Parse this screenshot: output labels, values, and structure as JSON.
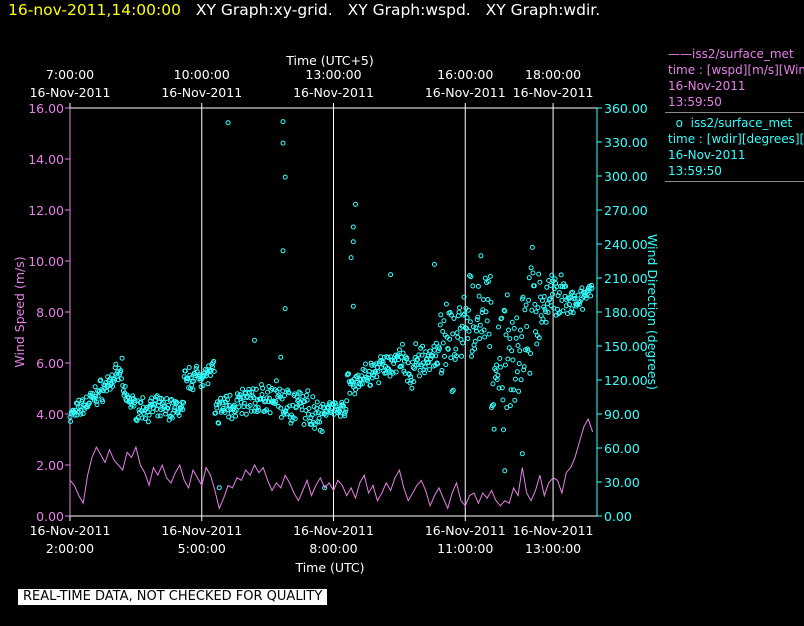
{
  "header": {
    "timestamp": "16-nov-2011,14:00:00",
    "graphs": [
      "XY Graph:xy-grid.",
      "XY Graph:wspd.",
      "XY Graph:wdir."
    ]
  },
  "legend": [
    {
      "marker": "line",
      "name": "iss2/surface_met",
      "lines": [
        "time : [wspd][m/s][Wind",
        "16-Nov-2011",
        "13:59:50"
      ]
    },
    {
      "marker": "circle",
      "name": "iss2/surface_met",
      "lines": [
        "time : [wdir][degrees][W",
        "16-Nov-2011",
        "13:59:50"
      ]
    }
  ],
  "banner": "REAL-TIME DATA, NOT CHECKED FOR QUALITY",
  "colors": {
    "wspd": "#e680e6",
    "wdir": "#33ffff",
    "axes": "#ffffff",
    "title": "#ffff00",
    "background": "#000000"
  },
  "chart_data": {
    "type": "scatter",
    "grid": "vertical lines only",
    "top_axis": {
      "label": "Time (UTC+5)",
      "ticks": [
        {
          "time": "7:00:00",
          "date": "16-Nov-2011",
          "x": 2.0
        },
        {
          "time": "10:00:00",
          "date": "16-Nov-2011",
          "x": 5.0
        },
        {
          "time": "13:00:00",
          "date": "16-Nov-2011",
          "x": 8.0
        },
        {
          "time": "16:00:00",
          "date": "16-Nov-2011",
          "x": 11.0
        },
        {
          "time": "18:00:00",
          "date": "16-Nov-2011",
          "x": 13.0
        }
      ]
    },
    "bottom_axis": {
      "label": "Time (UTC)",
      "xlim": [
        2.0,
        14.0
      ],
      "ticks": [
        {
          "date": "16-Nov-2011",
          "time": "2:00:00",
          "x": 2.0
        },
        {
          "date": "16-Nov-2011",
          "time": "5:00:00",
          "x": 5.0
        },
        {
          "date": "16-Nov-2011",
          "time": "8:00:00",
          "x": 8.0
        },
        {
          "date": "16-Nov-2011",
          "time": "11:00:00",
          "x": 11.0
        },
        {
          "date": "16-Nov-2011",
          "time": "13:00:00",
          "x": 13.0
        }
      ]
    },
    "left_axis": {
      "label": "Wind Speed (m/s)",
      "ylim": [
        0,
        16
      ],
      "ticks": [
        "0.00",
        "2.00",
        "4.00",
        "6.00",
        "8.00",
        "10.00",
        "12.00",
        "14.00",
        "16.00"
      ]
    },
    "right_axis": {
      "label": "Wind Direction (degrees)",
      "ylim": [
        0,
        360
      ],
      "ticks": [
        "0.00",
        "30.00",
        "60.00",
        "90.00",
        "120.00",
        "150.00",
        "180.00",
        "210.00",
        "240.00",
        "270.00",
        "300.00",
        "330.00",
        "360.00"
      ]
    },
    "series": [
      {
        "name": "iss2/surface_met",
        "variable": "wspd",
        "style": "line",
        "axis": "left",
        "x_unit": "UTC hour",
        "points": [
          [
            2.0,
            1.4
          ],
          [
            2.1,
            1.2
          ],
          [
            2.2,
            0.8
          ],
          [
            2.3,
            0.5
          ],
          [
            2.4,
            1.6
          ],
          [
            2.5,
            2.3
          ],
          [
            2.6,
            2.7
          ],
          [
            2.7,
            2.4
          ],
          [
            2.8,
            2.1
          ],
          [
            2.9,
            2.6
          ],
          [
            3.0,
            2.2
          ],
          [
            3.1,
            2.0
          ],
          [
            3.2,
            1.8
          ],
          [
            3.3,
            2.5
          ],
          [
            3.4,
            2.3
          ],
          [
            3.5,
            2.7
          ],
          [
            3.6,
            2.0
          ],
          [
            3.7,
            1.7
          ],
          [
            3.8,
            1.2
          ],
          [
            3.9,
            1.9
          ],
          [
            4.0,
            1.6
          ],
          [
            4.1,
            2.0
          ],
          [
            4.2,
            1.5
          ],
          [
            4.3,
            1.3
          ],
          [
            4.4,
            1.7
          ],
          [
            4.5,
            2.0
          ],
          [
            4.6,
            1.4
          ],
          [
            4.7,
            1.1
          ],
          [
            4.8,
            1.8
          ],
          [
            4.9,
            1.5
          ],
          [
            5.0,
            1.2
          ],
          [
            5.1,
            1.9
          ],
          [
            5.2,
            1.6
          ],
          [
            5.3,
            1.0
          ],
          [
            5.4,
            0.3
          ],
          [
            5.5,
            0.7
          ],
          [
            5.6,
            1.2
          ],
          [
            5.7,
            1.1
          ],
          [
            5.8,
            1.5
          ],
          [
            5.9,
            1.4
          ],
          [
            6.0,
            1.8
          ],
          [
            6.1,
            1.6
          ],
          [
            6.2,
            2.0
          ],
          [
            6.3,
            1.7
          ],
          [
            6.4,
            1.9
          ],
          [
            6.5,
            1.4
          ],
          [
            6.6,
            1.0
          ],
          [
            6.7,
            1.3
          ],
          [
            6.8,
            1.1
          ],
          [
            6.9,
            1.6
          ],
          [
            7.0,
            1.3
          ],
          [
            7.1,
            0.9
          ],
          [
            7.2,
            0.6
          ],
          [
            7.3,
            1.0
          ],
          [
            7.4,
            1.4
          ],
          [
            7.5,
            0.8
          ],
          [
            7.6,
            1.2
          ],
          [
            7.7,
            1.5
          ],
          [
            7.8,
            1.1
          ],
          [
            7.9,
            1.3
          ],
          [
            8.0,
            1.0
          ],
          [
            8.1,
            1.4
          ],
          [
            8.2,
            1.2
          ],
          [
            8.3,
            0.8
          ],
          [
            8.4,
            1.1
          ],
          [
            8.5,
            0.7
          ],
          [
            8.6,
            1.3
          ],
          [
            8.7,
            1.6
          ],
          [
            8.8,
            0.9
          ],
          [
            8.9,
            1.2
          ],
          [
            9.0,
            0.6
          ],
          [
            9.1,
            0.9
          ],
          [
            9.2,
            1.3
          ],
          [
            9.3,
            1.0
          ],
          [
            9.4,
            1.5
          ],
          [
            9.5,
            1.8
          ],
          [
            9.6,
            1.1
          ],
          [
            9.7,
            0.6
          ],
          [
            9.8,
            0.9
          ],
          [
            9.9,
            1.2
          ],
          [
            10.0,
            1.4
          ],
          [
            10.1,
            1.0
          ],
          [
            10.2,
            0.4
          ],
          [
            10.3,
            0.8
          ],
          [
            10.4,
            1.1
          ],
          [
            10.5,
            0.7
          ],
          [
            10.6,
            0.3
          ],
          [
            10.7,
            0.9
          ],
          [
            10.8,
            1.3
          ],
          [
            10.9,
            0.6
          ],
          [
            11.0,
            0.4
          ],
          [
            11.1,
            0.8
          ],
          [
            11.2,
            0.9
          ],
          [
            11.3,
            0.5
          ],
          [
            11.4,
            0.9
          ],
          [
            11.5,
            0.7
          ],
          [
            11.6,
            1.0
          ],
          [
            11.7,
            0.6
          ],
          [
            11.8,
            0.4
          ],
          [
            11.9,
            0.6
          ],
          [
            12.0,
            0.5
          ],
          [
            12.1,
            1.1
          ],
          [
            12.2,
            0.8
          ],
          [
            12.3,
            1.9
          ],
          [
            12.4,
            0.9
          ],
          [
            12.5,
            0.6
          ],
          [
            12.6,
            1.0
          ],
          [
            12.7,
            1.6
          ],
          [
            12.8,
            0.8
          ],
          [
            12.9,
            1.3
          ],
          [
            13.0,
            1.5
          ],
          [
            13.1,
            1.4
          ],
          [
            13.2,
            0.9
          ],
          [
            13.3,
            1.7
          ],
          [
            13.4,
            1.9
          ],
          [
            13.5,
            2.3
          ],
          [
            13.6,
            2.9
          ],
          [
            13.7,
            3.5
          ],
          [
            13.8,
            3.8
          ],
          [
            13.9,
            3.3
          ]
        ]
      },
      {
        "name": "iss2/surface_met",
        "variable": "wdir",
        "style": "circle-markers",
        "axis": "right",
        "x_unit": "UTC hour",
        "bands": [
          {
            "x": [
              2.0,
              2.4
            ],
            "center": [
              88,
              100
            ],
            "spread": 10
          },
          {
            "x": [
              2.4,
              3.2
            ],
            "center": [
              100,
              128
            ],
            "spread": 12
          },
          {
            "x": [
              3.2,
              3.5
            ],
            "center": [
              110,
              95
            ],
            "spread": 10
          },
          {
            "x": [
              3.5,
              4.6
            ],
            "center": [
              95,
              95
            ],
            "spread": 12
          },
          {
            "x": [
              4.6,
              5.3
            ],
            "center": [
              120,
              128
            ],
            "spread": 12
          },
          {
            "x": [
              5.3,
              5.6
            ],
            "center": [
              90,
              100
            ],
            "spread": 14
          },
          {
            "x": [
              5.6,
              6.8
            ],
            "center": [
              98,
              105
            ],
            "spread": 16
          },
          {
            "x": [
              6.8,
              7.8
            ],
            "center": [
              100,
              90
            ],
            "spread": 20
          },
          {
            "x": [
              7.8,
              8.3
            ],
            "center": [
              95,
              95
            ],
            "spread": 8
          },
          {
            "x": [
              8.3,
              9.6
            ],
            "center": [
              115,
              140
            ],
            "spread": 14
          },
          {
            "x": [
              9.6,
              10.4
            ],
            "center": [
              125,
              145
            ],
            "spread": 22
          },
          {
            "x": [
              10.4,
              11.6
            ],
            "center": [
              140,
              190
            ],
            "spread": 50
          },
          {
            "x": [
              11.6,
              12.7
            ],
            "center": [
              110,
              195
            ],
            "spread": 60
          },
          {
            "x": [
              12.7,
              13.3
            ],
            "center": [
              185,
              200
            ],
            "spread": 25
          },
          {
            "x": [
              13.3,
              13.7
            ],
            "center": [
              185,
              190
            ],
            "spread": 15
          },
          {
            "x": [
              13.7,
              13.9
            ],
            "center": [
              195,
              200
            ],
            "spread": 6
          }
        ],
        "outliers": [
          [
            5.6,
            347
          ],
          [
            6.85,
            348
          ],
          [
            6.85,
            329
          ],
          [
            6.9,
            299
          ],
          [
            6.85,
            234
          ],
          [
            6.9,
            183
          ],
          [
            8.5,
            275
          ],
          [
            8.45,
            255
          ],
          [
            8.45,
            242
          ],
          [
            8.4,
            228
          ],
          [
            8.45,
            185
          ],
          [
            9.3,
            213
          ],
          [
            10.3,
            222
          ],
          [
            6.2,
            155
          ],
          [
            6.8,
            140
          ],
          [
            12.3,
            55
          ],
          [
            5.4,
            25
          ],
          [
            7.8,
            25
          ],
          [
            11.9,
            40
          ]
        ]
      }
    ]
  }
}
